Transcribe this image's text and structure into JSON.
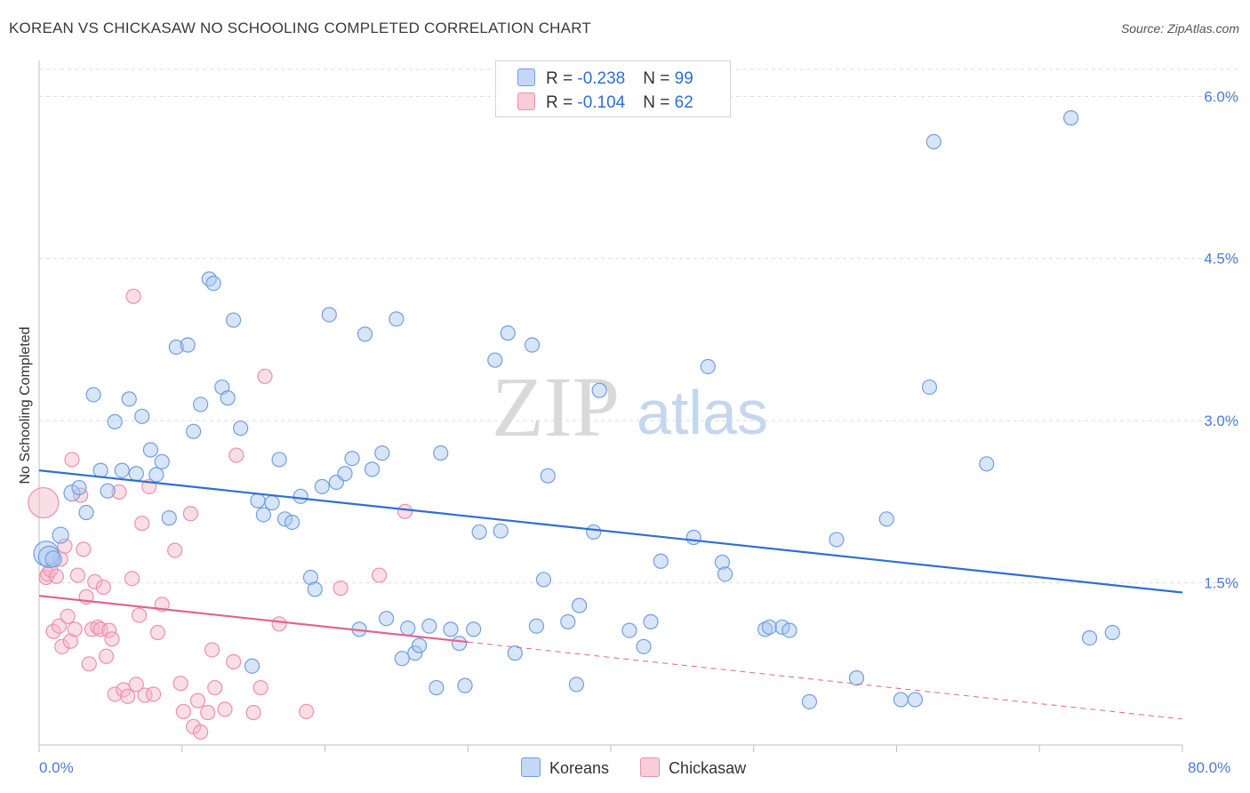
{
  "header": {
    "title": "KOREAN VS CHICKASAW NO SCHOOLING COMPLETED CORRELATION CHART",
    "source": "Source: ZipAtlas.com"
  },
  "watermark": {
    "zip": "ZIP",
    "atlas": "atlas"
  },
  "legend": {
    "rows": [
      {
        "r_label": "R = ",
        "r_value": "-0.238",
        "n_label": "N = ",
        "n_value": "99",
        "color": "#a9c6f0"
      },
      {
        "r_label": "R = ",
        "r_value": "-0.104",
        "n_label": "N = ",
        "n_value": "62",
        "color": "#f5b6c8"
      }
    ]
  },
  "bottom_legend": {
    "items": [
      {
        "label": "Koreans"
      },
      {
        "label": "Chickasaw"
      }
    ]
  },
  "colors": {
    "blue_fill": "#a9c6f0",
    "blue_stroke": "#6f9fe0",
    "blue_line": "#2e6fd3",
    "pink_fill": "#f5b6c8",
    "pink_stroke": "#ee8fab",
    "pink_line": "#e0648e",
    "axis_label": "#4a7cd6",
    "grid": "#dcdcdc"
  },
  "chart_data": {
    "type": "scatter",
    "title": "KOREAN VS CHICKASAW NO SCHOOLING COMPLETED CORRELATION CHART",
    "xlabel": "",
    "ylabel": "No Schooling Completed",
    "xlim": [
      0,
      80
    ],
    "ylim": [
      0,
      6.2
    ],
    "x_tick_labels": [
      "0.0%",
      "80.0%"
    ],
    "y_ticks": [
      1.5,
      3.0,
      4.5,
      6.0
    ],
    "y_tick_labels": [
      "1.5%",
      "3.0%",
      "4.5%",
      "6.0%"
    ],
    "grid": "horizontal dashed",
    "legend_position": "top-center",
    "series": [
      {
        "name": "Koreans",
        "r": -0.238,
        "n": 99,
        "trend": {
          "x": [
            0,
            80
          ],
          "y": [
            2.54,
            1.41
          ]
        },
        "points": [
          [
            0.5,
            1.77,
            14
          ],
          [
            0.7,
            1.74,
            12
          ],
          [
            1.0,
            1.72,
            9
          ],
          [
            1.5,
            1.94,
            9
          ],
          [
            2.3,
            2.33,
            9
          ],
          [
            2.8,
            2.38,
            8
          ],
          [
            3.3,
            2.15,
            8
          ],
          [
            3.8,
            3.24,
            8
          ],
          [
            4.3,
            2.54,
            8
          ],
          [
            4.8,
            2.35,
            8
          ],
          [
            5.3,
            2.99,
            8
          ],
          [
            5.8,
            2.54,
            8
          ],
          [
            6.3,
            3.2,
            8
          ],
          [
            6.8,
            2.51,
            8
          ],
          [
            7.2,
            3.04,
            8
          ],
          [
            7.8,
            2.73,
            8
          ],
          [
            8.2,
            2.5,
            8
          ],
          [
            8.6,
            2.62,
            8
          ],
          [
            9.1,
            2.1,
            8
          ],
          [
            9.6,
            3.68,
            8
          ],
          [
            10.4,
            3.7,
            8
          ],
          [
            10.8,
            2.9,
            8
          ],
          [
            11.3,
            3.15,
            8
          ],
          [
            11.9,
            4.31,
            8
          ],
          [
            12.2,
            4.27,
            8
          ],
          [
            12.8,
            3.31,
            8
          ],
          [
            13.2,
            3.21,
            8
          ],
          [
            13.6,
            3.93,
            8
          ],
          [
            14.1,
            2.93,
            8
          ],
          [
            14.9,
            0.73,
            8
          ],
          [
            15.3,
            2.26,
            8
          ],
          [
            15.7,
            2.13,
            8
          ],
          [
            16.3,
            2.24,
            8
          ],
          [
            16.8,
            2.64,
            8
          ],
          [
            17.2,
            2.09,
            8
          ],
          [
            17.7,
            2.06,
            8
          ],
          [
            18.3,
            2.3,
            8
          ],
          [
            19.0,
            1.55,
            8
          ],
          [
            19.3,
            1.44,
            8
          ],
          [
            19.8,
            2.39,
            8
          ],
          [
            20.3,
            3.98,
            8
          ],
          [
            20.8,
            2.43,
            8
          ],
          [
            21.4,
            2.51,
            8
          ],
          [
            21.9,
            2.65,
            8
          ],
          [
            22.4,
            1.07,
            8
          ],
          [
            22.8,
            3.8,
            8
          ],
          [
            23.3,
            2.55,
            8
          ],
          [
            24.0,
            2.7,
            8
          ],
          [
            24.3,
            1.17,
            8
          ],
          [
            25.0,
            3.94,
            8
          ],
          [
            25.4,
            0.8,
            8
          ],
          [
            25.8,
            1.08,
            8
          ],
          [
            26.3,
            0.85,
            8
          ],
          [
            26.6,
            0.92,
            8
          ],
          [
            27.3,
            1.1,
            8
          ],
          [
            27.8,
            0.53,
            8
          ],
          [
            28.1,
            2.7,
            8
          ],
          [
            28.8,
            1.07,
            8
          ],
          [
            29.4,
            0.94,
            8
          ],
          [
            29.8,
            0.55,
            8
          ],
          [
            30.4,
            1.07,
            8
          ],
          [
            30.8,
            1.97,
            8
          ],
          [
            31.9,
            3.56,
            8
          ],
          [
            32.3,
            1.98,
            8
          ],
          [
            32.8,
            3.81,
            8
          ],
          [
            33.3,
            0.85,
            8
          ],
          [
            34.5,
            3.7,
            8
          ],
          [
            34.8,
            1.1,
            8
          ],
          [
            35.3,
            1.53,
            8
          ],
          [
            35.6,
            2.49,
            8
          ],
          [
            37.0,
            1.14,
            8
          ],
          [
            37.6,
            0.56,
            8
          ],
          [
            37.8,
            1.29,
            8
          ],
          [
            38.8,
            1.97,
            8
          ],
          [
            39.2,
            3.28,
            8
          ],
          [
            41.3,
            1.06,
            8
          ],
          [
            42.3,
            0.91,
            8
          ],
          [
            42.8,
            1.14,
            8
          ],
          [
            43.5,
            1.7,
            8
          ],
          [
            45.8,
            1.92,
            8
          ],
          [
            46.8,
            3.5,
            8
          ],
          [
            47.8,
            1.69,
            8
          ],
          [
            48.0,
            1.58,
            8
          ],
          [
            50.8,
            1.07,
            8
          ],
          [
            51.1,
            1.09,
            8
          ],
          [
            52.0,
            1.09,
            8
          ],
          [
            52.5,
            1.06,
            8
          ],
          [
            53.9,
            0.4,
            8
          ],
          [
            55.8,
            1.9,
            8
          ],
          [
            57.2,
            0.62,
            8
          ],
          [
            59.3,
            2.09,
            8
          ],
          [
            60.3,
            0.42,
            8
          ],
          [
            61.3,
            0.42,
            8
          ],
          [
            62.3,
            3.31,
            8
          ],
          [
            62.6,
            5.58,
            8
          ],
          [
            66.3,
            2.6,
            8
          ],
          [
            72.2,
            5.8,
            8
          ],
          [
            73.5,
            0.99,
            8
          ],
          [
            75.1,
            1.04,
            8
          ]
        ]
      },
      {
        "name": "Chickasaw",
        "r": -0.104,
        "n": 62,
        "trend": {
          "x": [
            0,
            80
          ],
          "y": [
            1.38,
            0.24
          ]
        },
        "points": [
          [
            0.3,
            2.24,
            17
          ],
          [
            0.5,
            1.55,
            8
          ],
          [
            0.6,
            1.58,
            8
          ],
          [
            0.8,
            1.62,
            8
          ],
          [
            1.0,
            1.05,
            8
          ],
          [
            1.2,
            1.56,
            8
          ],
          [
            1.4,
            1.1,
            8
          ],
          [
            1.5,
            1.72,
            8
          ],
          [
            1.6,
            0.91,
            8
          ],
          [
            1.8,
            1.84,
            8
          ],
          [
            2.0,
            1.19,
            8
          ],
          [
            2.2,
            0.96,
            8
          ],
          [
            2.3,
            2.64,
            8
          ],
          [
            2.5,
            1.07,
            8
          ],
          [
            2.7,
            1.57,
            8
          ],
          [
            2.9,
            2.31,
            8
          ],
          [
            3.1,
            1.81,
            8
          ],
          [
            3.3,
            1.37,
            8
          ],
          [
            3.5,
            0.75,
            8
          ],
          [
            3.7,
            1.07,
            8
          ],
          [
            3.9,
            1.51,
            8
          ],
          [
            4.1,
            1.09,
            8
          ],
          [
            4.3,
            1.07,
            8
          ],
          [
            4.5,
            1.46,
            8
          ],
          [
            4.7,
            0.82,
            8
          ],
          [
            4.9,
            1.06,
            8
          ],
          [
            5.1,
            0.98,
            8
          ],
          [
            5.3,
            0.47,
            8
          ],
          [
            5.6,
            2.34,
            8
          ],
          [
            5.9,
            0.51,
            8
          ],
          [
            6.2,
            0.45,
            8
          ],
          [
            6.5,
            1.54,
            8
          ],
          [
            6.6,
            4.15,
            8
          ],
          [
            6.8,
            0.56,
            8
          ],
          [
            7.0,
            1.2,
            8
          ],
          [
            7.2,
            2.05,
            8
          ],
          [
            7.4,
            0.46,
            8
          ],
          [
            7.7,
            2.39,
            8
          ],
          [
            8.0,
            0.47,
            8
          ],
          [
            8.3,
            1.04,
            8
          ],
          [
            8.6,
            1.3,
            8
          ],
          [
            9.5,
            1.8,
            8
          ],
          [
            9.9,
            0.57,
            8
          ],
          [
            10.1,
            0.31,
            8
          ],
          [
            10.6,
            2.14,
            8
          ],
          [
            10.8,
            0.17,
            8
          ],
          [
            11.1,
            0.41,
            8
          ],
          [
            11.3,
            0.12,
            8
          ],
          [
            11.8,
            0.3,
            8
          ],
          [
            12.1,
            0.88,
            8
          ],
          [
            12.3,
            0.53,
            8
          ],
          [
            13.0,
            0.33,
            8
          ],
          [
            13.6,
            0.77,
            8
          ],
          [
            13.8,
            2.68,
            8
          ],
          [
            15.0,
            0.3,
            8
          ],
          [
            15.5,
            0.53,
            8
          ],
          [
            15.8,
            3.41,
            8
          ],
          [
            16.8,
            1.12,
            8
          ],
          [
            18.7,
            0.31,
            8
          ],
          [
            21.1,
            1.45,
            8
          ],
          [
            23.8,
            1.57,
            8
          ],
          [
            25.6,
            2.16,
            8
          ]
        ]
      }
    ]
  }
}
